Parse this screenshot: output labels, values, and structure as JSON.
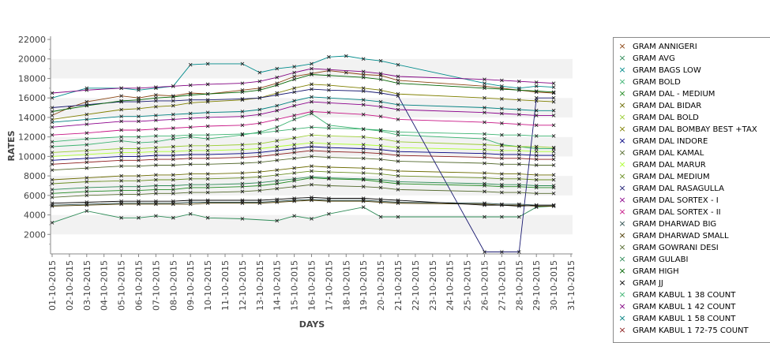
{
  "chart_data": {
    "type": "line",
    "xlabel": "DAYS",
    "ylabel": "RATES",
    "ylim": [
      0,
      22000
    ],
    "yticks": [
      2000,
      4000,
      6000,
      8000,
      10000,
      12000,
      14000,
      16000,
      18000,
      20000,
      22000
    ],
    "grid": "horizontal alternating bands",
    "legend_position": "right",
    "categories": [
      "01-10-2015",
      "02-10-2015",
      "03-10-2015",
      "04-10-2015",
      "05-10-2015",
      "06-10-2015",
      "07-10-2015",
      "08-10-2015",
      "09-10-2015",
      "10-10-2015",
      "11-10-2015",
      "12-10-2015",
      "13-10-2015",
      "14-10-2015",
      "15-10-2015",
      "16-10-2015",
      "17-10-2015",
      "18-10-2015",
      "19-10-2015",
      "20-10-2015",
      "21-10-2015",
      "22-10-2015",
      "23-10-2015",
      "24-10-2015",
      "25-10-2015",
      "26-10-2015",
      "27-10-2015",
      "28-10-2015",
      "29-10-2015",
      "30-10-2015",
      "31-10-2015"
    ],
    "series": [
      {
        "name": "GRAM ANNIGERI",
        "color": "#8B4513",
        "values": [
          14200,
          15000,
          15600,
          null,
          16200,
          16000,
          16300,
          16200,
          16500,
          16400,
          null,
          16800,
          17000,
          17500,
          18200,
          18500,
          18800,
          18600,
          18400,
          18300,
          17800,
          null,
          null,
          null,
          null,
          17200,
          17000,
          16800,
          16600,
          16500,
          null
        ]
      },
      {
        "name": "GRAM AVG",
        "color": "#2E8B57",
        "values": [
          3200,
          null,
          4400,
          null,
          3700,
          3700,
          3900,
          3700,
          4100,
          3700,
          null,
          3600,
          null,
          3400,
          3900,
          3600,
          4100,
          null,
          4800,
          3800,
          3800,
          null,
          null,
          null,
          null,
          3800,
          3800,
          3800,
          4800,
          4900,
          null
        ]
      },
      {
        "name": "GRAM BAGS LOW",
        "color": "#008B8B",
        "values": [
          16000,
          null,
          17000,
          null,
          17000,
          16800,
          17000,
          17200,
          19400,
          19500,
          null,
          19500,
          18600,
          19000,
          19200,
          19500,
          20200,
          20300,
          20000,
          19800,
          19400,
          null,
          null,
          null,
          null,
          17500,
          17200,
          17000,
          17200,
          17100,
          null
        ]
      },
      {
        "name": "GRAM BOLD",
        "color": "#3CB371",
        "values": [
          11000,
          null,
          11200,
          null,
          11600,
          11400,
          11500,
          11800,
          12000,
          11800,
          null,
          12200,
          12500,
          13000,
          13800,
          14400,
          13200,
          null,
          12800,
          12600,
          12200,
          null,
          null,
          null,
          null,
          11800,
          11200,
          11000,
          10800,
          10800,
          null
        ]
      },
      {
        "name": "GRAM DAL - MEDIUM",
        "color": "#228B22",
        "values": [
          6200,
          null,
          6400,
          null,
          6500,
          6500,
          6600,
          6600,
          6800,
          6800,
          null,
          6900,
          7000,
          7200,
          7500,
          7800,
          7700,
          null,
          7600,
          7400,
          7200,
          null,
          null,
          null,
          null,
          7000,
          6900,
          6900,
          6800,
          6800,
          null
        ]
      },
      {
        "name": "GRAM DAL BIDAR",
        "color": "#6B6B00",
        "values": [
          7600,
          null,
          7800,
          null,
          8000,
          8000,
          8100,
          8100,
          8200,
          8200,
          null,
          8300,
          8400,
          8600,
          8800,
          9000,
          8900,
          null,
          8800,
          8700,
          8500,
          null,
          null,
          null,
          null,
          8300,
          8200,
          8200,
          8100,
          8100,
          null
        ]
      },
      {
        "name": "GRAM DAL BOLD",
        "color": "#9ACD32",
        "values": [
          10400,
          null,
          10600,
          null,
          10800,
          10800,
          10900,
          11000,
          11100,
          11100,
          null,
          11200,
          11300,
          11600,
          11900,
          12200,
          12100,
          null,
          12000,
          11800,
          11500,
          null,
          null,
          null,
          null,
          11200,
          11100,
          11000,
          11000,
          10900,
          null
        ]
      },
      {
        "name": "GRAM DAL BOMBAY BEST +TAX",
        "color": "#808000",
        "values": [
          13800,
          null,
          14300,
          null,
          14800,
          14900,
          15100,
          15200,
          15500,
          15600,
          null,
          15800,
          16000,
          16500,
          17000,
          17400,
          17300,
          null,
          17000,
          16800,
          16400,
          null,
          null,
          null,
          null,
          16000,
          15900,
          15800,
          15700,
          15600,
          null
        ]
      },
      {
        "name": "GRAM DAL INDORE",
        "color": "#000080",
        "values": [
          9600,
          null,
          9800,
          null,
          10000,
          10000,
          10100,
          10100,
          10200,
          10200,
          null,
          10300,
          10400,
          10600,
          10800,
          11000,
          10900,
          null,
          10800,
          10700,
          10500,
          null,
          null,
          null,
          null,
          10300,
          10200,
          10200,
          10100,
          10100,
          null
        ]
      },
      {
        "name": "GRAM DAL KAMAL",
        "color": "#556B2F",
        "values": [
          8600,
          null,
          8800,
          null,
          9000,
          9000,
          9100,
          9100,
          9200,
          9200,
          null,
          9300,
          9400,
          9600,
          9800,
          10000,
          9900,
          null,
          9800,
          9700,
          9500,
          null,
          null,
          null,
          null,
          9300,
          9200,
          9200,
          9100,
          9100,
          null
        ]
      },
      {
        "name": "GRAM DAL MARUR",
        "color": "#ADFF2F",
        "values": [
          10000,
          null,
          10200,
          null,
          10400,
          10400,
          10500,
          10500,
          10600,
          10600,
          null,
          10700,
          10800,
          11000,
          11200,
          11400,
          11300,
          null,
          11200,
          11100,
          10900,
          null,
          null,
          null,
          null,
          10700,
          10600,
          10600,
          10500,
          10500,
          null
        ]
      },
      {
        "name": "GRAM DAL MEDIUM",
        "color": "#6B8E23",
        "values": [
          7200,
          null,
          7400,
          null,
          7500,
          7500,
          7600,
          7600,
          7700,
          7700,
          null,
          7800,
          7900,
          8100,
          8300,
          8500,
          8400,
          null,
          8300,
          8200,
          8000,
          null,
          null,
          null,
          null,
          7800,
          7700,
          7700,
          7600,
          7600,
          null
        ]
      },
      {
        "name": "GRAM DAL RASAGULLA",
        "color": "#191970",
        "values": [
          15000,
          null,
          15300,
          null,
          15600,
          15600,
          15700,
          15700,
          15800,
          15800,
          null,
          15900,
          16000,
          16300,
          16600,
          16900,
          16800,
          null,
          16700,
          16500,
          16200,
          null,
          null,
          null,
          null,
          200,
          200,
          200,
          16000,
          16000,
          null
        ]
      },
      {
        "name": "GRAM DAL SORTEX - I",
        "color": "#8B008B",
        "values": [
          13000,
          null,
          13300,
          null,
          13600,
          13600,
          13700,
          13800,
          13900,
          14000,
          null,
          14100,
          14300,
          14700,
          15200,
          15600,
          15500,
          null,
          15300,
          15100,
          14800,
          null,
          null,
          null,
          null,
          14500,
          14400,
          14300,
          14200,
          14200,
          null
        ]
      },
      {
        "name": "GRAM DAL SORTEX - II",
        "color": "#C71585",
        "values": [
          12200,
          null,
          12400,
          null,
          12700,
          12700,
          12800,
          12900,
          13000,
          13100,
          null,
          13200,
          13400,
          13800,
          14200,
          14600,
          14500,
          null,
          14300,
          14100,
          13800,
          null,
          null,
          null,
          null,
          13500,
          13400,
          13300,
          13200,
          13200,
          null
        ]
      },
      {
        "name": "GRAM DHARWAD BIG",
        "color": "#2F4F4F",
        "values": [
          5000,
          null,
          5100,
          null,
          5200,
          5200,
          5200,
          5200,
          5300,
          5300,
          null,
          5300,
          5300,
          5400,
          5500,
          5600,
          5500,
          null,
          5500,
          5400,
          5300,
          null,
          null,
          null,
          null,
          5200,
          5100,
          5100,
          5000,
          5000,
          null
        ]
      },
      {
        "name": "GRAM DHARWAD SMALL",
        "color": "#4B3A00",
        "values": [
          4900,
          null,
          5000,
          null,
          5100,
          5100,
          5100,
          5100,
          5100,
          5200,
          null,
          5200,
          5200,
          5300,
          5400,
          5500,
          5400,
          null,
          5400,
          5300,
          5200,
          null,
          null,
          null,
          null,
          5100,
          5000,
          5000,
          4900,
          4900,
          null
        ]
      },
      {
        "name": "GRAM GOWRANI DESI",
        "color": "#556B2F",
        "values": [
          5800,
          null,
          6000,
          null,
          6100,
          6100,
          6200,
          6200,
          6300,
          6300,
          null,
          6400,
          6500,
          6700,
          6900,
          7100,
          7000,
          null,
          6900,
          6800,
          6600,
          null,
          null,
          null,
          null,
          6400,
          6300,
          6300,
          6200,
          6200,
          null
        ]
      },
      {
        "name": "GRAM GULABI",
        "color": "#2E8B57",
        "values": [
          6600,
          null,
          6800,
          null,
          6900,
          6900,
          7000,
          7000,
          7100,
          7100,
          null,
          7200,
          7300,
          7500,
          7700,
          7900,
          7800,
          null,
          7700,
          7600,
          7400,
          null,
          null,
          null,
          null,
          7200,
          7100,
          7100,
          7000,
          7000,
          null
        ]
      },
      {
        "name": "GRAM HIGH",
        "color": "#006400",
        "values": [
          14600,
          null,
          15200,
          null,
          15700,
          15800,
          16000,
          16100,
          16300,
          16400,
          null,
          16600,
          16800,
          17300,
          17900,
          18400,
          18300,
          null,
          18100,
          17900,
          17500,
          null,
          null,
          null,
          null,
          17000,
          16900,
          16800,
          16700,
          16600,
          null
        ]
      },
      {
        "name": "GRAM JJ",
        "color": "#000000",
        "values": [
          5200,
          null,
          5300,
          null,
          5400,
          5400,
          5400,
          5400,
          5500,
          5500,
          null,
          5500,
          5500,
          5600,
          5700,
          5800,
          5700,
          null,
          5700,
          5600,
          5500,
          null,
          null,
          null,
          null,
          5000,
          5000,
          4900,
          5000,
          5000,
          null
        ]
      },
      {
        "name": "GRAM KABUL 1 38 COUNT",
        "color": "#3CB371",
        "values": [
          11500,
          null,
          11800,
          null,
          12000,
          12000,
          12100,
          12100,
          12200,
          12200,
          null,
          12300,
          12400,
          12600,
          12800,
          13000,
          12900,
          null,
          12800,
          12700,
          12500,
          null,
          null,
          null,
          null,
          12300,
          12200,
          12200,
          12100,
          12100,
          null
        ]
      },
      {
        "name": "GRAM KABUL 1 42 COUNT",
        "color": "#800080",
        "values": [
          16500,
          null,
          16800,
          null,
          17000,
          17000,
          17100,
          17200,
          17300,
          17400,
          null,
          17500,
          17700,
          18100,
          18600,
          19000,
          18900,
          null,
          18700,
          18500,
          18200,
          null,
          null,
          null,
          null,
          17900,
          17800,
          17700,
          17600,
          17500,
          null
        ]
      },
      {
        "name": "GRAM KABUL 1 58 COUNT",
        "color": "#008080",
        "values": [
          13500,
          null,
          13800,
          null,
          14100,
          14100,
          14200,
          14300,
          14400,
          14500,
          null,
          14600,
          14800,
          15200,
          15700,
          16100,
          16000,
          null,
          15800,
          15600,
          15300,
          null,
          null,
          null,
          null,
          15000,
          14900,
          14800,
          14700,
          14700,
          null
        ]
      },
      {
        "name": "GRAM KABUL 1 72-75 COUNT",
        "color": "#8B1A1A",
        "values": [
          9200,
          null,
          9400,
          null,
          9600,
          9600,
          9700,
          9700,
          9800,
          9800,
          null,
          9900,
          10000,
          10200,
          10400,
          10600,
          10500,
          null,
          10400,
          10300,
          10100,
          null,
          null,
          null,
          null,
          9900,
          9800,
          9800,
          9700,
          9700,
          null
        ]
      }
    ]
  }
}
